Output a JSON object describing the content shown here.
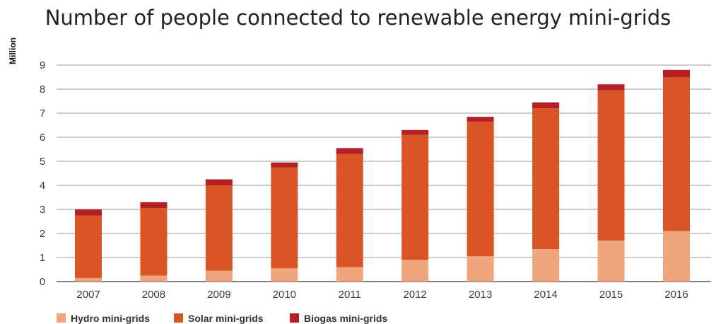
{
  "chart_data": {
    "type": "bar",
    "stacked": true,
    "title": "Number of people connected to renewable energy mini-grids",
    "xlabel": "",
    "ylabel": "Million",
    "ylim": [
      0,
      9
    ],
    "yticks": [
      0,
      1,
      2,
      3,
      4,
      5,
      6,
      7,
      8,
      9
    ],
    "grid": true,
    "legend_position": "bottom-left",
    "categories": [
      "2007",
      "2008",
      "2009",
      "2010",
      "2011",
      "2012",
      "2013",
      "2014",
      "2015",
      "2016"
    ],
    "series": [
      {
        "name": "Hydro mini-grids",
        "color": "#f0a57f",
        "values": [
          0.15,
          0.25,
          0.45,
          0.55,
          0.6,
          0.9,
          1.05,
          1.35,
          1.7,
          2.1
        ]
      },
      {
        "name": "Solar mini-grids",
        "color": "#d95526",
        "values": [
          2.6,
          2.8,
          3.55,
          4.2,
          4.7,
          5.2,
          5.6,
          5.85,
          6.25,
          6.4
        ]
      },
      {
        "name": "Biogas mini-grids",
        "color": "#b42026",
        "values": [
          0.25,
          0.25,
          0.25,
          0.2,
          0.25,
          0.2,
          0.2,
          0.25,
          0.25,
          0.3
        ]
      }
    ]
  }
}
